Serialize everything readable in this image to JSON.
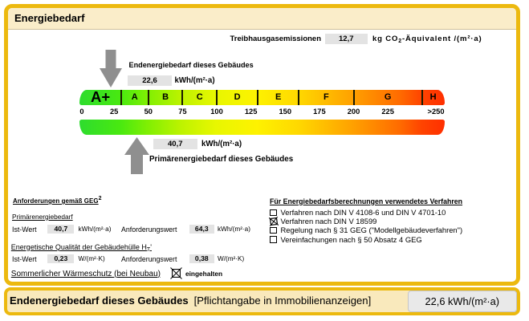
{
  "header": {
    "title": "Energiebedarf"
  },
  "thg": {
    "label": "Treibhausgasemissionen",
    "value": "12,7",
    "unit_html": "kg CO<sub>2</sub>-Äquivalent /(m²·a)"
  },
  "endenergie": {
    "label": "Endenergiebedarf dieses Gebäudes",
    "value": "22,6",
    "unit": "kWh/(m²·a)"
  },
  "primaerenergie": {
    "label": "Primärenergiebedarf dieses Gebäudes",
    "value": "40,7",
    "unit": "kWh/(m²·a)"
  },
  "chart_data": {
    "type": "color-band-gauge",
    "title": "Energiebedarf",
    "unit": "kWh/(m²·a)",
    "axis_min": 0,
    "axis_max": 250,
    "tick_labels": [
      "0",
      "25",
      "50",
      "75",
      "100",
      "125",
      "150",
      "175",
      "200",
      "225",
      ">250"
    ],
    "tick_values": [
      0,
      25,
      50,
      75,
      100,
      125,
      150,
      175,
      200,
      225,
      250
    ],
    "classes": [
      {
        "label": "A+",
        "from": 0,
        "to": 30
      },
      {
        "label": "A",
        "from": 30,
        "to": 50
      },
      {
        "label": "B",
        "from": 50,
        "to": 75
      },
      {
        "label": "C",
        "from": 75,
        "to": 100
      },
      {
        "label": "D",
        "from": 100,
        "to": 130
      },
      {
        "label": "E",
        "from": 130,
        "to": 160
      },
      {
        "label": "F",
        "from": 160,
        "to": 200
      },
      {
        "label": "G",
        "from": 200,
        "to": 250
      },
      {
        "label": "H",
        "from": 250,
        "to": 267
      }
    ],
    "markers": [
      {
        "name": "Endenergiebedarf dieses Gebäudes",
        "value": 22.6,
        "direction": "down"
      },
      {
        "name": "Primärenergiebedarf dieses Gebäudes",
        "value": 40.7,
        "direction": "up"
      }
    ],
    "gradient": [
      "#2bd52b",
      "#49e910",
      "#80ef03",
      "#bff300",
      "#e8f700",
      "#fef200",
      "#ffd800",
      "#ffa400",
      "#ff5500",
      "#ff3a00"
    ],
    "legend_position": "none",
    "grid": false
  },
  "requirements": {
    "header_html": "<span class='u'>Anforderungen gemäß GEG</span><sup>2</sup>",
    "primaer_header": "Primärenergiebedarf",
    "row1": {
      "label": "Ist-Wert",
      "value": "40,7",
      "unit": "kWh/(m²·a)",
      "req_label": "Anforderungswert",
      "req_value": "64,3",
      "req_unit": "kWh/(m²·a)"
    },
    "huelle_header_html": "Energetische Qualität der Gebäudehülle H<sub>T</sub>'",
    "row2": {
      "label": "Ist-Wert",
      "value": "0,23",
      "unit": "W/(m²·K)",
      "req_label": "Anforderungswert",
      "req_value": "0,38",
      "req_unit": "W/(m²·K)"
    },
    "sommer_label": "Sommerlicher Wärmeschutz (bei Neubau)",
    "sommer_status": "eingehalten",
    "sommer_checked": true
  },
  "procedures": {
    "header": "Für Energiebedarfsberechnungen verwendetes Verfahren",
    "items": [
      {
        "label": "Verfahren nach DIN V 4108-6 und DIN V 4701-10",
        "checked": false
      },
      {
        "label": "Verfahren nach DIN V 18599",
        "checked": true
      },
      {
        "label": "Regelung nach § 31 GEG (\"Modellgebäudeverfahren\")",
        "checked": false
      },
      {
        "label": "Vereinfachungen nach § 50 Absatz 4 GEG",
        "checked": false
      }
    ]
  },
  "footer": {
    "label": "Endenergiebedarf dieses Gebäudes",
    "note": "[Pflichtangabe in Immobilienanzeigen]",
    "value": "22,6 kWh/(m²·a)"
  },
  "colors": {
    "frame_gold": "#ecb90f",
    "strip_cream": "#faedc9",
    "value_box_gray": "#e3e3e3",
    "arrow_gray": "#8f8f8f"
  }
}
